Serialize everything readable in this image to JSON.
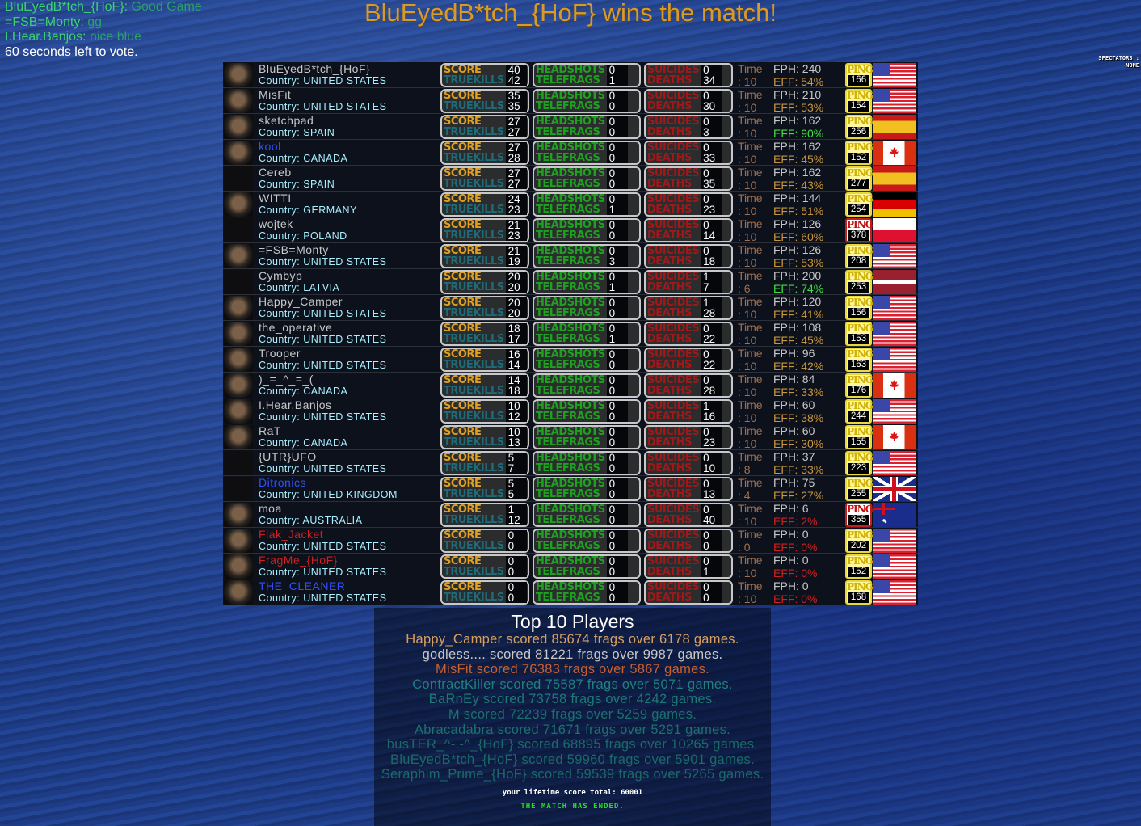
{
  "chat": [
    {
      "name": "BluEyedB*tch_{HoF}:",
      "msg": "Good Game"
    },
    {
      "name": "=FSB=Monty:",
      "msg": "gg"
    },
    {
      "name": "I.Hear.Banjos:",
      "msg": "nice blue"
    }
  ],
  "vote_notice": "60 seconds left to vote.",
  "winner_title": "BluEyedB*tch_{HoF} wins the match!",
  "spectators": {
    "label": "SPECTATORS :",
    "value": "NONE"
  },
  "labels": {
    "score": "SCORE",
    "truekills": "TRUEKILLS",
    "headshots": "HEADSHOTS",
    "telefrags": "TELEFRAGS",
    "suicides": "SUICIDES",
    "deaths": "DEATHS",
    "time": "Time",
    "ping": "PING",
    "country_prefix": "Country: ",
    "fph_prefix": "FPH: ",
    "eff_prefix": "EFF: ",
    "time_prefix": ": "
  },
  "colors": {
    "name_default": "#c8c8c8",
    "name_blue": "#3050ff",
    "name_red": "#d02020",
    "eff_normal": "#c8963c",
    "eff_good": "#40e040",
    "eff_bad": "#d02020"
  },
  "players": [
    {
      "name": "BluEyedB*tch_{HoF}",
      "country": "UNITED STATES",
      "flag": "us",
      "score": "40",
      "truekills": "42",
      "headshots": "0",
      "telefrags": "1",
      "suicides": "0",
      "deaths": "34",
      "time": "10",
      "fph": "240",
      "eff": "54%",
      "eff_level": "normal",
      "ping": "166",
      "name_color": "default"
    },
    {
      "name": "MisFit",
      "country": "UNITED STATES",
      "flag": "us",
      "score": "35",
      "truekills": "35",
      "headshots": "0",
      "telefrags": "0",
      "suicides": "0",
      "deaths": "30",
      "time": "10",
      "fph": "210",
      "eff": "53%",
      "eff_level": "normal",
      "ping": "154",
      "name_color": "default"
    },
    {
      "name": "sketchpad",
      "country": "SPAIN",
      "flag": "es",
      "score": "27",
      "truekills": "27",
      "headshots": "0",
      "telefrags": "0",
      "suicides": "0",
      "deaths": "3",
      "time": "10",
      "fph": "162",
      "eff": "90%",
      "eff_level": "good",
      "ping": "256",
      "name_color": "default"
    },
    {
      "name": "kool",
      "country": "CANADA",
      "flag": "ca",
      "score": "27",
      "truekills": "28",
      "headshots": "0",
      "telefrags": "0",
      "suicides": "0",
      "deaths": "33",
      "time": "10",
      "fph": "162",
      "eff": "45%",
      "eff_level": "normal",
      "ping": "152",
      "name_color": "blue"
    },
    {
      "name": "Cereb",
      "country": "SPAIN",
      "flag": "es",
      "score": "27",
      "truekills": "27",
      "headshots": "0",
      "telefrags": "0",
      "suicides": "0",
      "deaths": "35",
      "time": "10",
      "fph": "162",
      "eff": "43%",
      "eff_level": "normal",
      "ping": "277",
      "name_color": "default"
    },
    {
      "name": "WITTI",
      "country": "GERMANY",
      "flag": "de",
      "score": "24",
      "truekills": "23",
      "headshots": "0",
      "telefrags": "1",
      "suicides": "0",
      "deaths": "23",
      "time": "10",
      "fph": "144",
      "eff": "51%",
      "eff_level": "normal",
      "ping": "254",
      "name_color": "default"
    },
    {
      "name": "wojtek",
      "country": "POLAND",
      "flag": "pl",
      "score": "21",
      "truekills": "23",
      "headshots": "0",
      "telefrags": "0",
      "suicides": "0",
      "deaths": "14",
      "time": "10",
      "fph": "126",
      "eff": "60%",
      "eff_level": "normal",
      "ping": "378",
      "ping_bad": true,
      "name_color": "default"
    },
    {
      "name": "=FSB=Monty",
      "country": "UNITED STATES",
      "flag": "us",
      "score": "21",
      "truekills": "19",
      "headshots": "0",
      "telefrags": "3",
      "suicides": "0",
      "deaths": "18",
      "time": "10",
      "fph": "126",
      "eff": "53%",
      "eff_level": "normal",
      "ping": "208",
      "name_color": "default"
    },
    {
      "name": "Cymbyp",
      "country": "LATVIA",
      "flag": "lv",
      "score": "20",
      "truekills": "20",
      "headshots": "0",
      "telefrags": "1",
      "suicides": "1",
      "deaths": "7",
      "time": "6",
      "fph": "200",
      "eff": "74%",
      "eff_level": "good",
      "ping": "253",
      "name_color": "default"
    },
    {
      "name": "Happy_Camper",
      "country": "UNITED STATES",
      "flag": "us",
      "score": "20",
      "truekills": "20",
      "headshots": "0",
      "telefrags": "0",
      "suicides": "1",
      "deaths": "28",
      "time": "10",
      "fph": "120",
      "eff": "41%",
      "eff_level": "normal",
      "ping": "156",
      "name_color": "default"
    },
    {
      "name": "the_operative",
      "country": "UNITED STATES",
      "flag": "us",
      "score": "18",
      "truekills": "17",
      "headshots": "0",
      "telefrags": "1",
      "suicides": "0",
      "deaths": "22",
      "time": "10",
      "fph": "108",
      "eff": "45%",
      "eff_level": "normal",
      "ping": "153",
      "name_color": "default"
    },
    {
      "name": "Trooper",
      "country": "UNITED STATES",
      "flag": "us",
      "score": "16",
      "truekills": "14",
      "headshots": "0",
      "telefrags": "0",
      "suicides": "0",
      "deaths": "22",
      "time": "10",
      "fph": "96",
      "eff": "42%",
      "eff_level": "normal",
      "ping": "163",
      "name_color": "default"
    },
    {
      "name": ")_=_^_=_(",
      "country": "CANADA",
      "flag": "ca",
      "score": "14",
      "truekills": "18",
      "headshots": "0",
      "telefrags": "0",
      "suicides": "0",
      "deaths": "28",
      "time": "10",
      "fph": "84",
      "eff": "33%",
      "eff_level": "normal",
      "ping": "176",
      "name_color": "default"
    },
    {
      "name": "I.Hear.Banjos",
      "country": "UNITED STATES",
      "flag": "us",
      "score": "10",
      "truekills": "12",
      "headshots": "0",
      "telefrags": "0",
      "suicides": "1",
      "deaths": "16",
      "time": "10",
      "fph": "60",
      "eff": "38%",
      "eff_level": "normal",
      "ping": "244",
      "name_color": "default"
    },
    {
      "name": "RaT",
      "country": "CANADA",
      "flag": "ca",
      "score": "10",
      "truekills": "13",
      "headshots": "0",
      "telefrags": "0",
      "suicides": "0",
      "deaths": "23",
      "time": "10",
      "fph": "60",
      "eff": "30%",
      "eff_level": "normal",
      "ping": "155",
      "name_color": "default"
    },
    {
      "name": "{UTR}UFO",
      "country": "UNITED STATES",
      "flag": "us",
      "score": "5",
      "truekills": "7",
      "headshots": "0",
      "telefrags": "0",
      "suicides": "0",
      "deaths": "10",
      "time": "8",
      "fph": "37",
      "eff": "33%",
      "eff_level": "normal",
      "ping": "223",
      "name_color": "default"
    },
    {
      "name": "Ditronics",
      "country": "UNITED KINGDOM",
      "flag": "gb",
      "score": "5",
      "truekills": "5",
      "headshots": "0",
      "telefrags": "0",
      "suicides": "0",
      "deaths": "13",
      "time": "4",
      "fph": "75",
      "eff": "27%",
      "eff_level": "normal",
      "ping": "255",
      "name_color": "blue"
    },
    {
      "name": "moa",
      "country": "AUSTRALIA",
      "flag": "au",
      "score": "1",
      "truekills": "12",
      "headshots": "0",
      "telefrags": "0",
      "suicides": "0",
      "deaths": "40",
      "time": "10",
      "fph": "6",
      "eff": "2%",
      "eff_level": "bad",
      "ping": "355",
      "ping_bad": true,
      "name_color": "default"
    },
    {
      "name": "Flak_Jacket",
      "country": "UNITED STATES",
      "flag": "us",
      "score": "0",
      "truekills": "0",
      "headshots": "0",
      "telefrags": "0",
      "suicides": "0",
      "deaths": "0",
      "time": "0",
      "fph": "0",
      "eff": "0%",
      "eff_level": "bad",
      "ping": "202",
      "name_color": "red"
    },
    {
      "name": "FragMe_{HoF}",
      "country": "UNITED STATES",
      "flag": "us",
      "score": "0",
      "truekills": "0",
      "headshots": "0",
      "telefrags": "0",
      "suicides": "0",
      "deaths": "1",
      "time": "10",
      "fph": "0",
      "eff": "0%",
      "eff_level": "bad",
      "ping": "152",
      "name_color": "red"
    },
    {
      "name": "THE_CLEANER",
      "country": "UNITED STATES",
      "flag": "us",
      "score": "0",
      "truekills": "0",
      "headshots": "0",
      "telefrags": "0",
      "suicides": "0",
      "deaths": "0",
      "time": "10",
      "fph": "0",
      "eff": "0%",
      "eff_level": "bad",
      "ping": "168",
      "name_color": "blue"
    }
  ],
  "top10": {
    "title": "Top 10 Players",
    "entries": [
      {
        "text": "Happy_Camper scored 85674 frags over 6178 games.",
        "color": "#d8a060"
      },
      {
        "text": "godless.... scored 81221 frags over 9987 games.",
        "color": "#c8c8c8"
      },
      {
        "text": "MisFit scored 76383 frags over 5867 games.",
        "color": "#c86030"
      },
      {
        "text": "ContractKiller scored 75587 frags over 5071 games.",
        "color": "#208080"
      },
      {
        "text": "BaRnEy scored 73758 frags over 4242 games.",
        "color": "#1e7878"
      },
      {
        "text": "M scored 72239 frags over 5259 games.",
        "color": "#1c7070"
      },
      {
        "text": "Abracadabra scored 71671 frags over 5291 games.",
        "color": "#1c7070"
      },
      {
        "text": "busTER_^-.-^_{HoF} scored 68895 frags over 10265 games.",
        "color": "#1a6a6a"
      },
      {
        "text": "BluEyedB*tch_{HoF} scored 59960 frags over 5901 games.",
        "color": "#1a6a6a"
      },
      {
        "text": "Seraphim_Prime_{HoF} scored 59539 frags over 5265 games.",
        "color": "#1a6a6a"
      }
    ],
    "lifetime": "your lifetime score total: 60001",
    "status": "THE MATCH HAS ENDED."
  }
}
